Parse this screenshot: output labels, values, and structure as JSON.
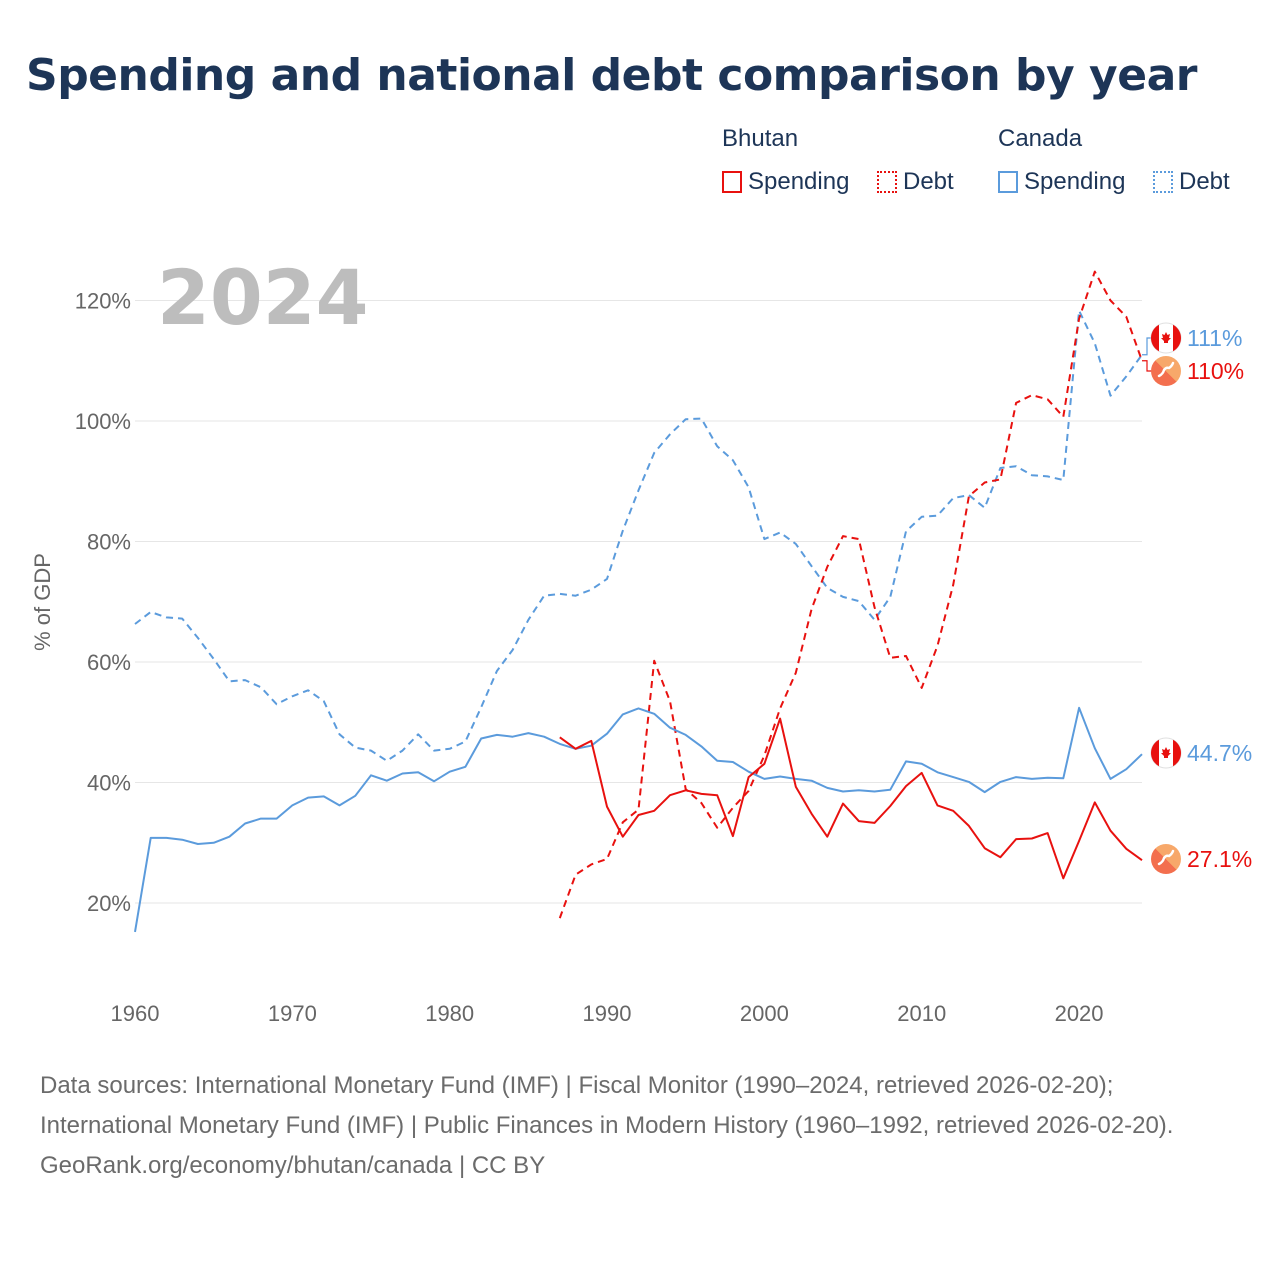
{
  "title": "Spending and national debt comparison by year",
  "legend": {
    "groups": [
      {
        "country": "Bhutan",
        "color": "#e8110f",
        "items": [
          {
            "label": "Spending",
            "style": "solid"
          },
          {
            "label": "Debt",
            "style": "dotted"
          }
        ]
      },
      {
        "country": "Canada",
        "color": "#5b9bdc",
        "items": [
          {
            "label": "Spending",
            "style": "solid"
          },
          {
            "label": "Debt",
            "style": "dotted"
          }
        ]
      }
    ]
  },
  "colors": {
    "bhutan": "#e8110f",
    "canada": "#5b9bdc",
    "year_label": "#bdbdbd",
    "axis_text": "#666666",
    "grid": "#e6e6e6",
    "title": "#1d3557"
  },
  "chart_data": {
    "type": "line",
    "year_label": "2024",
    "ylabel": "% of GDP",
    "ylim": [
      10,
      128
    ],
    "xlim": [
      1960,
      2024
    ],
    "y_ticks": [
      20,
      40,
      60,
      80,
      100,
      120
    ],
    "y_tick_labels": [
      "20%",
      "40%",
      "60%",
      "80%",
      "100%",
      "120%"
    ],
    "x_ticks": [
      1960,
      1970,
      1980,
      1990,
      2000,
      2010,
      2020
    ],
    "x_tick_labels": [
      "1960",
      "1970",
      "1980",
      "1990",
      "2000",
      "2010",
      "2020"
    ],
    "series": [
      {
        "name": "Canada Spending",
        "country": "Canada",
        "kind": "spending",
        "color": "#5b9bdc",
        "dash": "solid",
        "start_year": 1960,
        "values": [
          15.2,
          30.8,
          30.8,
          30.5,
          29.8,
          30.0,
          31.0,
          33.2,
          34.0,
          34.0,
          36.2,
          37.5,
          37.7,
          36.2,
          37.8,
          41.2,
          40.3,
          41.5,
          41.7,
          40.2,
          41.8,
          42.6,
          47.3,
          47.9,
          47.6,
          48.2,
          47.6,
          46.4,
          45.6,
          46.1,
          48.1,
          51.3,
          52.3,
          51.4,
          49.1,
          47.9,
          46.0,
          43.6,
          43.4,
          41.8,
          40.6,
          41.0,
          40.6,
          40.3,
          39.1,
          38.5,
          38.7,
          38.5,
          38.8,
          43.5,
          43.1,
          41.7,
          40.9,
          40.1,
          38.4,
          40.1,
          40.9,
          40.6,
          40.8,
          40.7,
          52.4,
          45.7,
          40.6,
          42.2,
          44.7
        ],
        "end_label": "44.7%"
      },
      {
        "name": "Canada Debt",
        "country": "Canada",
        "kind": "debt",
        "color": "#5b9bdc",
        "dash": "dashed",
        "start_year": 1960,
        "values": [
          66.3,
          68.3,
          67.4,
          67.2,
          64.0,
          60.5,
          56.8,
          57.0,
          55.8,
          53.0,
          54.3,
          55.3,
          53.5,
          48.0,
          45.8,
          45.3,
          43.6,
          45.3,
          48.0,
          45.3,
          45.6,
          46.8,
          52.5,
          58.5,
          62.0,
          67.0,
          71.0,
          71.3,
          71.0,
          72.0,
          73.8,
          81.8,
          88.5,
          94.7,
          97.8,
          100.3,
          100.4,
          95.8,
          93.5,
          89.0,
          80.4,
          81.5,
          79.6,
          75.9,
          72.3,
          70.8,
          70.1,
          67.0,
          70.8,
          81.7,
          84.1,
          84.3,
          87.2,
          87.7,
          85.6,
          92.2,
          92.5,
          91.0,
          90.8,
          90.2,
          118.3,
          112.9,
          104.2,
          107.4,
          111.0
        ],
        "end_label": "111%"
      },
      {
        "name": "Bhutan Spending",
        "country": "Bhutan",
        "kind": "spending",
        "color": "#e8110f",
        "dash": "solid",
        "start_year": 1987,
        "values": [
          47.5,
          45.6,
          46.9,
          36.0,
          31.0,
          34.6,
          35.3,
          37.9,
          38.7,
          38.1,
          37.9,
          31.1,
          40.9,
          43.1,
          50.6,
          39.3,
          34.8,
          31.0,
          36.5,
          33.6,
          33.3,
          36.1,
          39.4,
          41.6,
          36.2,
          35.3,
          32.8,
          29.1,
          27.6,
          30.6,
          30.7,
          31.6,
          24.1,
          30.3,
          36.7,
          32.0,
          29.0,
          27.1
        ],
        "end_label": "27.1%"
      },
      {
        "name": "Bhutan Debt",
        "country": "Bhutan",
        "kind": "debt",
        "color": "#e8110f",
        "dash": "dashed",
        "start_year": 1987,
        "values": [
          17.5,
          24.7,
          26.4,
          27.3,
          33.4,
          35.5,
          60.2,
          53.5,
          38.9,
          36.6,
          32.5,
          35.8,
          38.6,
          44.5,
          52.3,
          58.2,
          68.8,
          75.8,
          80.9,
          80.4,
          69.1,
          60.7,
          61.0,
          55.7,
          62.7,
          72.8,
          87.5,
          89.8,
          90.3,
          103.0,
          104.3,
          103.6,
          100.7,
          117.0,
          124.8,
          120.0,
          117.3,
          110.0
        ],
        "end_label": "110%"
      }
    ]
  },
  "sources": {
    "line1": "Data sources: International Monetary Fund (IMF) | Fiscal Monitor (1990–2024, retrieved 2026-02-20); International Monetary Fund (IMF) | Public Finances in Modern History (1960–1992, retrieved 2026-02-20).",
    "line2": "GeoRank.org/economy/bhutan/canada | CC BY"
  },
  "icons": {
    "bhutan_flag": "bhutan-flag-icon",
    "canada_flag": "canada-flag-icon"
  }
}
